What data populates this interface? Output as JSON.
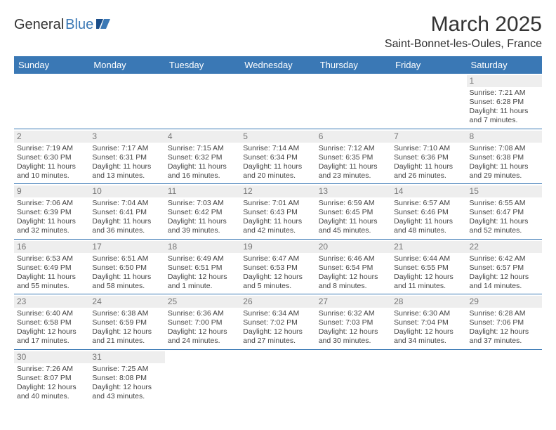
{
  "logo": {
    "part1": "General",
    "part2": "Blue"
  },
  "header": {
    "title": "March 2025",
    "location": "Saint-Bonnet-les-Oules, France"
  },
  "colors": {
    "header_bg": "#3a78b5",
    "border": "#3a78b5",
    "daynum_bg": "#eeeeee"
  },
  "dayNames": [
    "Sunday",
    "Monday",
    "Tuesday",
    "Wednesday",
    "Thursday",
    "Friday",
    "Saturday"
  ],
  "weeks": [
    [
      null,
      null,
      null,
      null,
      null,
      null,
      {
        "n": "1",
        "sr": "Sunrise: 7:21 AM",
        "ss": "Sunset: 6:28 PM",
        "d1": "Daylight: 11 hours",
        "d2": "and 7 minutes."
      }
    ],
    [
      {
        "n": "2",
        "sr": "Sunrise: 7:19 AM",
        "ss": "Sunset: 6:30 PM",
        "d1": "Daylight: 11 hours",
        "d2": "and 10 minutes."
      },
      {
        "n": "3",
        "sr": "Sunrise: 7:17 AM",
        "ss": "Sunset: 6:31 PM",
        "d1": "Daylight: 11 hours",
        "d2": "and 13 minutes."
      },
      {
        "n": "4",
        "sr": "Sunrise: 7:15 AM",
        "ss": "Sunset: 6:32 PM",
        "d1": "Daylight: 11 hours",
        "d2": "and 16 minutes."
      },
      {
        "n": "5",
        "sr": "Sunrise: 7:14 AM",
        "ss": "Sunset: 6:34 PM",
        "d1": "Daylight: 11 hours",
        "d2": "and 20 minutes."
      },
      {
        "n": "6",
        "sr": "Sunrise: 7:12 AM",
        "ss": "Sunset: 6:35 PM",
        "d1": "Daylight: 11 hours",
        "d2": "and 23 minutes."
      },
      {
        "n": "7",
        "sr": "Sunrise: 7:10 AM",
        "ss": "Sunset: 6:36 PM",
        "d1": "Daylight: 11 hours",
        "d2": "and 26 minutes."
      },
      {
        "n": "8",
        "sr": "Sunrise: 7:08 AM",
        "ss": "Sunset: 6:38 PM",
        "d1": "Daylight: 11 hours",
        "d2": "and 29 minutes."
      }
    ],
    [
      {
        "n": "9",
        "sr": "Sunrise: 7:06 AM",
        "ss": "Sunset: 6:39 PM",
        "d1": "Daylight: 11 hours",
        "d2": "and 32 minutes."
      },
      {
        "n": "10",
        "sr": "Sunrise: 7:04 AM",
        "ss": "Sunset: 6:41 PM",
        "d1": "Daylight: 11 hours",
        "d2": "and 36 minutes."
      },
      {
        "n": "11",
        "sr": "Sunrise: 7:03 AM",
        "ss": "Sunset: 6:42 PM",
        "d1": "Daylight: 11 hours",
        "d2": "and 39 minutes."
      },
      {
        "n": "12",
        "sr": "Sunrise: 7:01 AM",
        "ss": "Sunset: 6:43 PM",
        "d1": "Daylight: 11 hours",
        "d2": "and 42 minutes."
      },
      {
        "n": "13",
        "sr": "Sunrise: 6:59 AM",
        "ss": "Sunset: 6:45 PM",
        "d1": "Daylight: 11 hours",
        "d2": "and 45 minutes."
      },
      {
        "n": "14",
        "sr": "Sunrise: 6:57 AM",
        "ss": "Sunset: 6:46 PM",
        "d1": "Daylight: 11 hours",
        "d2": "and 48 minutes."
      },
      {
        "n": "15",
        "sr": "Sunrise: 6:55 AM",
        "ss": "Sunset: 6:47 PM",
        "d1": "Daylight: 11 hours",
        "d2": "and 52 minutes."
      }
    ],
    [
      {
        "n": "16",
        "sr": "Sunrise: 6:53 AM",
        "ss": "Sunset: 6:49 PM",
        "d1": "Daylight: 11 hours",
        "d2": "and 55 minutes."
      },
      {
        "n": "17",
        "sr": "Sunrise: 6:51 AM",
        "ss": "Sunset: 6:50 PM",
        "d1": "Daylight: 11 hours",
        "d2": "and 58 minutes."
      },
      {
        "n": "18",
        "sr": "Sunrise: 6:49 AM",
        "ss": "Sunset: 6:51 PM",
        "d1": "Daylight: 12 hours",
        "d2": "and 1 minute."
      },
      {
        "n": "19",
        "sr": "Sunrise: 6:47 AM",
        "ss": "Sunset: 6:53 PM",
        "d1": "Daylight: 12 hours",
        "d2": "and 5 minutes."
      },
      {
        "n": "20",
        "sr": "Sunrise: 6:46 AM",
        "ss": "Sunset: 6:54 PM",
        "d1": "Daylight: 12 hours",
        "d2": "and 8 minutes."
      },
      {
        "n": "21",
        "sr": "Sunrise: 6:44 AM",
        "ss": "Sunset: 6:55 PM",
        "d1": "Daylight: 12 hours",
        "d2": "and 11 minutes."
      },
      {
        "n": "22",
        "sr": "Sunrise: 6:42 AM",
        "ss": "Sunset: 6:57 PM",
        "d1": "Daylight: 12 hours",
        "d2": "and 14 minutes."
      }
    ],
    [
      {
        "n": "23",
        "sr": "Sunrise: 6:40 AM",
        "ss": "Sunset: 6:58 PM",
        "d1": "Daylight: 12 hours",
        "d2": "and 17 minutes."
      },
      {
        "n": "24",
        "sr": "Sunrise: 6:38 AM",
        "ss": "Sunset: 6:59 PM",
        "d1": "Daylight: 12 hours",
        "d2": "and 21 minutes."
      },
      {
        "n": "25",
        "sr": "Sunrise: 6:36 AM",
        "ss": "Sunset: 7:00 PM",
        "d1": "Daylight: 12 hours",
        "d2": "and 24 minutes."
      },
      {
        "n": "26",
        "sr": "Sunrise: 6:34 AM",
        "ss": "Sunset: 7:02 PM",
        "d1": "Daylight: 12 hours",
        "d2": "and 27 minutes."
      },
      {
        "n": "27",
        "sr": "Sunrise: 6:32 AM",
        "ss": "Sunset: 7:03 PM",
        "d1": "Daylight: 12 hours",
        "d2": "and 30 minutes."
      },
      {
        "n": "28",
        "sr": "Sunrise: 6:30 AM",
        "ss": "Sunset: 7:04 PM",
        "d1": "Daylight: 12 hours",
        "d2": "and 34 minutes."
      },
      {
        "n": "29",
        "sr": "Sunrise: 6:28 AM",
        "ss": "Sunset: 7:06 PM",
        "d1": "Daylight: 12 hours",
        "d2": "and 37 minutes."
      }
    ],
    [
      {
        "n": "30",
        "sr": "Sunrise: 7:26 AM",
        "ss": "Sunset: 8:07 PM",
        "d1": "Daylight: 12 hours",
        "d2": "and 40 minutes."
      },
      {
        "n": "31",
        "sr": "Sunrise: 7:25 AM",
        "ss": "Sunset: 8:08 PM",
        "d1": "Daylight: 12 hours",
        "d2": "and 43 minutes."
      },
      null,
      null,
      null,
      null,
      null
    ]
  ]
}
